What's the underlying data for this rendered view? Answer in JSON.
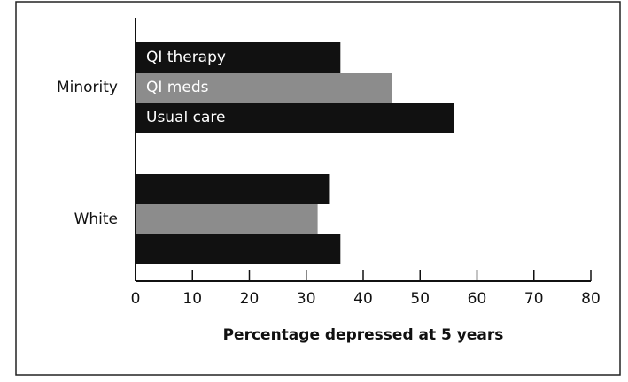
{
  "chart_data": {
    "type": "bar",
    "orientation": "horizontal",
    "categories": [
      "Minority",
      "White"
    ],
    "series": [
      {
        "name": "QI therapy",
        "color": "#111111",
        "values": [
          36,
          34
        ]
      },
      {
        "name": "QI meds",
        "color": "#8c8c8c",
        "values": [
          45,
          32
        ]
      },
      {
        "name": "Usual care",
        "color": "#111111",
        "values": [
          56,
          36
        ]
      }
    ],
    "x_label": "Percentage depressed at 5 years",
    "xlim": [
      0,
      80
    ],
    "xticks": [
      0,
      10,
      20,
      30,
      40,
      50,
      60,
      70,
      80
    ],
    "grid": false
  }
}
